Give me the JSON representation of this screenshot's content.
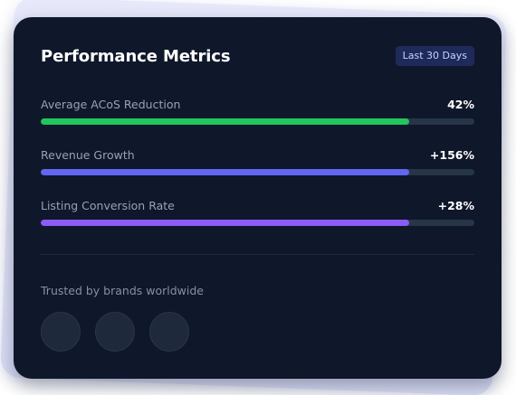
{
  "card": {
    "title": "Performance Metrics",
    "range_badge": "Last 30 Days"
  },
  "metrics": [
    {
      "label": "Average ACoS Reduction",
      "value": "42%",
      "progress": 0.85,
      "color": "#22c55e"
    },
    {
      "label": "Revenue Growth",
      "value": "+156%",
      "progress": 0.85,
      "color": "#6366f1"
    },
    {
      "label": "Listing Conversion Rate",
      "value": "+28%",
      "progress": 0.85,
      "color": "#8b5cf6"
    }
  ],
  "trusted": {
    "label": "Trusted by brands worldwide",
    "logo_count": 3
  },
  "colors": {
    "card_background": "#0f172a",
    "track": "#273549",
    "badge_background": "#1e2a5a"
  }
}
